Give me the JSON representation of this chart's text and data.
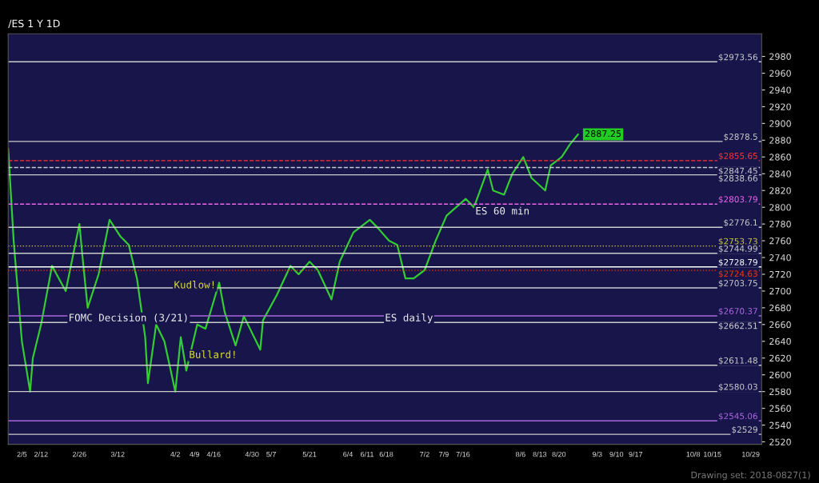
{
  "chart_data": {
    "type": "line",
    "title": "/ES 1 Y 1D",
    "x": [
      "2018-01-31",
      "2018-02-02",
      "2018-02-05",
      "2018-02-08",
      "2018-02-09",
      "2018-02-12",
      "2018-02-16",
      "2018-02-21",
      "2018-02-26",
      "2018-02-27",
      "2018-03-01",
      "2018-03-02",
      "2018-03-05",
      "2018-03-09",
      "2018-03-13",
      "2018-03-16",
      "2018-03-19",
      "2018-03-22",
      "2018-03-23",
      "2018-03-26",
      "2018-03-29",
      "2018-04-02",
      "2018-04-04",
      "2018-04-06",
      "2018-04-10",
      "2018-04-13",
      "2018-04-18",
      "2018-04-20",
      "2018-04-24",
      "2018-04-27",
      "2018-05-03",
      "2018-05-04",
      "2018-05-09",
      "2018-05-14",
      "2018-05-17",
      "2018-05-21",
      "2018-05-24",
      "2018-05-29",
      "2018-06-01",
      "2018-06-06",
      "2018-06-12",
      "2018-06-15",
      "2018-06-19",
      "2018-06-22",
      "2018-06-25",
      "2018-06-28",
      "2018-07-02",
      "2018-07-06",
      "2018-07-10",
      "2018-07-17",
      "2018-07-20",
      "2018-07-25",
      "2018-07-27",
      "2018-07-31",
      "2018-08-03",
      "2018-08-07",
      "2018-08-10",
      "2018-08-15",
      "2018-08-17",
      "2018-08-21",
      "2018-08-24",
      "2018-08-27"
    ],
    "series": [
      {
        "color": "#33cc33",
        "values": [
          2870,
          2760,
          2640,
          2580,
          2620,
          2660,
          2730,
          2700,
          2780,
          2745,
          2680,
          2690,
          2720,
          2785,
          2765,
          2755,
          2715,
          2645,
          2590,
          2660,
          2640,
          2580,
          2645,
          2605,
          2660,
          2655,
          2710,
          2675,
          2635,
          2670,
          2630,
          2665,
          2695,
          2730,
          2720,
          2735,
          2725,
          2690,
          2735,
          2770,
          2785,
          2775,
          2760,
          2755,
          2715,
          2715,
          2725,
          2760,
          2790,
          2810,
          2800,
          2845,
          2820,
          2815,
          2840,
          2860,
          2835,
          2820,
          2850,
          2860,
          2875,
          2887
        ]
      }
    ],
    "xlim": [
      "2018-01-31",
      "2018-11-02"
    ],
    "xticks": [
      {
        "value": "2018-02-05",
        "label": "2/5"
      },
      {
        "value": "2018-02-12",
        "label": "2/12"
      },
      {
        "value": "2018-02-26",
        "label": "2/26"
      },
      {
        "value": "2018-03-12",
        "label": "3/12"
      },
      {
        "value": "2018-04-02",
        "label": "4/2"
      },
      {
        "value": "2018-04-09",
        "label": "4/9"
      },
      {
        "value": "2018-04-16",
        "label": "4/16"
      },
      {
        "value": "2018-04-30",
        "label": "4/30"
      },
      {
        "value": "2018-05-07",
        "label": "5/7"
      },
      {
        "value": "2018-05-21",
        "label": "5/21"
      },
      {
        "value": "2018-06-04",
        "label": "6/4"
      },
      {
        "value": "2018-06-11",
        "label": "6/11"
      },
      {
        "value": "2018-06-18",
        "label": "6/18"
      },
      {
        "value": "2018-07-02",
        "label": "7/2"
      },
      {
        "value": "2018-07-09",
        "label": "7/9"
      },
      {
        "value": "2018-07-16",
        "label": "7/16"
      },
      {
        "value": "2018-08-06",
        "label": "8/6"
      },
      {
        "value": "2018-08-13",
        "label": "8/13"
      },
      {
        "value": "2018-08-20",
        "label": "8/20"
      },
      {
        "value": "2018-09-03",
        "label": "9/3"
      },
      {
        "value": "2018-09-10",
        "label": "9/10"
      },
      {
        "value": "2018-09-17",
        "label": "9/17"
      },
      {
        "value": "2018-10-08",
        "label": "10/8"
      },
      {
        "value": "2018-10-15",
        "label": "10/15"
      },
      {
        "value": "2018-10-29",
        "label": "10/29"
      }
    ],
    "ylim": [
      2517,
      3007
    ],
    "yticks": [
      2520,
      2540,
      2560,
      2580,
      2600,
      2620,
      2640,
      2660,
      2680,
      2700,
      2720,
      2740,
      2760,
      2780,
      2800,
      2820,
      2840,
      2860,
      2880,
      2900,
      2920,
      2940,
      2960,
      2980
    ],
    "grid": false,
    "marker": "none",
    "line_style": "solid",
    "ref_lines": [
      {
        "axis": "y",
        "value": 2973.56,
        "label": "$2973.56",
        "color": "#cccccc"
      },
      {
        "axis": "y",
        "value": 2878.5,
        "label": "$2878.5",
        "color": "#cccccc"
      },
      {
        "axis": "y",
        "value": 2855.65,
        "label": "$2855.65",
        "color": "#ff3333",
        "line_style": "dashed"
      },
      {
        "axis": "y",
        "value": 2847.45,
        "label": "$2847.45",
        "color": "#cccccc",
        "line_style": "dashed"
      },
      {
        "axis": "y",
        "value": 2838.66,
        "label": "$2838.66",
        "color": "#cccccc"
      },
      {
        "axis": "y",
        "value": 2803.79,
        "label": "$2803.79",
        "color": "#ee66ee",
        "line_style": "dashed"
      },
      {
        "axis": "y",
        "value": 2776.1,
        "label": "$2776.1",
        "color": "#cccccc"
      },
      {
        "axis": "y",
        "value": 2753.73,
        "label": "$2753.73",
        "color": "#cccc33",
        "line_style": "dotted"
      },
      {
        "axis": "y",
        "value": 2744.99,
        "label": "$2744.99",
        "color": "#cccccc"
      },
      {
        "axis": "y",
        "value": 2728.79,
        "label": "$2728.79",
        "color": "#ffffff"
      },
      {
        "axis": "y",
        "value": 2724.63,
        "label": "$2724.63",
        "color": "#ff3300",
        "line_style": "dotted"
      },
      {
        "axis": "y",
        "value": 2703.75,
        "label": "$2703.75",
        "color": "#cccccc"
      },
      {
        "axis": "y",
        "value": 2670.37,
        "label": "$2670.37",
        "color": "#aa66dd"
      },
      {
        "axis": "y",
        "value": 2662.51,
        "label": "$2662.51",
        "color": "#cccccc"
      },
      {
        "axis": "y",
        "value": 2611.48,
        "label": "$2611.48",
        "color": "#cccccc"
      },
      {
        "axis": "y",
        "value": 2580.03,
        "label": "$2580.03",
        "color": "#cccccc"
      },
      {
        "axis": "y",
        "value": 2545.06,
        "label": "$2545.06",
        "color": "#aa66dd"
      },
      {
        "axis": "y",
        "value": 2529,
        "label": "$2529",
        "color": "#cccccc"
      }
    ],
    "annotations": [
      {
        "text": "2887.25",
        "x": "2018-08-27",
        "y": 2887
      },
      "Kudlow!",
      "Bullard!",
      "FOMC Decision (3/21)",
      "ES daily",
      "ES 60 min",
      "Drawing set: 2018-0827(1)"
    ]
  }
}
